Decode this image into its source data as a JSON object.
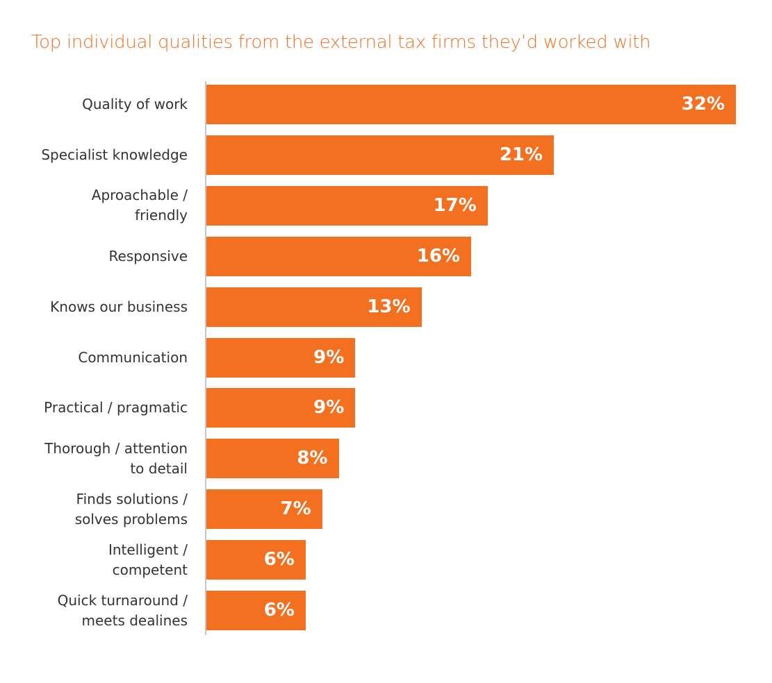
{
  "chart_data": {
    "type": "bar",
    "orientation": "horizontal",
    "title": "Top individual qualities from the external tax firms they’d worked with",
    "categories": [
      [
        "Quality of work"
      ],
      [
        "Specialist knowledge"
      ],
      [
        "Aproachable /",
        "friendly"
      ],
      [
        "Responsive"
      ],
      [
        "Knows our business"
      ],
      [
        "Communication"
      ],
      [
        "Practical / pragmatic"
      ],
      [
        "Thorough / attention",
        "to detail"
      ],
      [
        "Finds solutions /",
        "solves problems"
      ],
      [
        "Intelligent /",
        "competent"
      ],
      [
        "Quick turnaround /",
        "meets dealines"
      ]
    ],
    "values": [
      32,
      21,
      17,
      16,
      13,
      9,
      9,
      8,
      7,
      6,
      6
    ],
    "value_labels": [
      "32%",
      "21%",
      "17%",
      "16%",
      "13%",
      "9%",
      "9%",
      "8%",
      "7%",
      "6%",
      "6%"
    ],
    "xlim": [
      0,
      32
    ],
    "grid": false,
    "bar_color": "#F37021",
    "title_color": "#F37021"
  }
}
